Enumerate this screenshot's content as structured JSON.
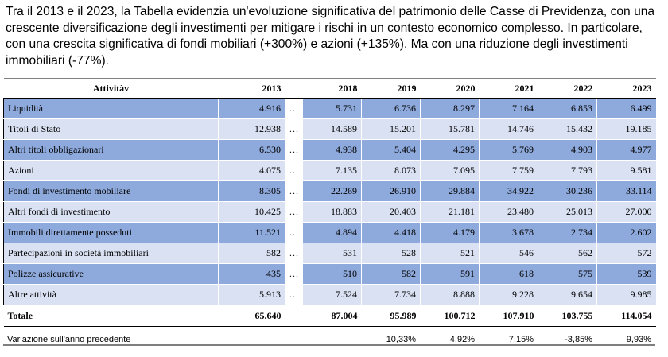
{
  "intro": "Tra il 2013 e il 2023, la Tabella evidenzia un'evoluzione significativa del patrimonio delle Casse di Previdenza, con una crescente diversificazione degli investimenti per mitigare i rischi in un contesto economico complesso. In particolare, con una crescita significativa di fondi mobiliari (+300%) e azioni (+135%). Ma con una riduzione degli investimenti immobiliari (-77%).",
  "table": {
    "header_label": "Attivitàv",
    "years": [
      "2013",
      "2018",
      "2019",
      "2020",
      "2021",
      "2022",
      "2023"
    ],
    "rows": [
      {
        "label": "Liquidità",
        "values": [
          "4.916",
          "5.731",
          "6.736",
          "8.297",
          "7.164",
          "6.853",
          "6.499"
        ],
        "shade": "dark"
      },
      {
        "label": "Titoli di Stato",
        "values": [
          "12.938",
          "14.589",
          "15.201",
          "15.781",
          "14.746",
          "15.432",
          "19.185"
        ],
        "shade": "light"
      },
      {
        "label": "Altri titoli obbligazionari",
        "values": [
          "6.530",
          "4.938",
          "5.404",
          "4.295",
          "5.769",
          "4.903",
          "4.977"
        ],
        "shade": "dark"
      },
      {
        "label": "Azioni",
        "values": [
          "4.075",
          "7.135",
          "8.073",
          "7.095",
          "7.759",
          "7.793",
          "9.581"
        ],
        "shade": "light"
      },
      {
        "label": "Fondi di investimento mobiliare",
        "values": [
          "8.305",
          "22.269",
          "26.910",
          "29.884",
          "34.922",
          "30.236",
          "33.114"
        ],
        "shade": "dark"
      },
      {
        "label": "Altri fondi di investimento",
        "values": [
          "10.425",
          "18.883",
          "20.403",
          "21.181",
          "23.480",
          "25.013",
          "27.000"
        ],
        "shade": "light"
      },
      {
        "label": "Immobili direttamente posseduti",
        "values": [
          "11.521",
          "4.894",
          "4.418",
          "4.179",
          "3.678",
          "2.734",
          "2.602"
        ],
        "shade": "dark"
      },
      {
        "label": "Partecipazioni in società immobiliari",
        "values": [
          "582",
          "531",
          "528",
          "521",
          "546",
          "562",
          "572"
        ],
        "shade": "light"
      },
      {
        "label": "Polizze assicurative",
        "values": [
          "435",
          "510",
          "582",
          "591",
          "618",
          "575",
          "539"
        ],
        "shade": "dark"
      },
      {
        "label": "Altre attività",
        "values": [
          "5.913",
          "7.524",
          "7.734",
          "8.888",
          "9.228",
          "9.654",
          "9.985"
        ],
        "shade": "light"
      }
    ],
    "total": {
      "label": "Totale",
      "values": [
        "65.640",
        "87.004",
        "95.989",
        "100.712",
        "107.910",
        "103.755",
        "114.054"
      ]
    },
    "ellipsis": "…",
    "variation": {
      "label": "Variazione sull'anno precedente",
      "values": [
        "10,33%",
        "4,92%",
        "7,15%",
        "-3,85%",
        "9,93%"
      ]
    }
  },
  "colors": {
    "dark_row": "#8ea9db",
    "light_row": "#d9e1f2"
  }
}
